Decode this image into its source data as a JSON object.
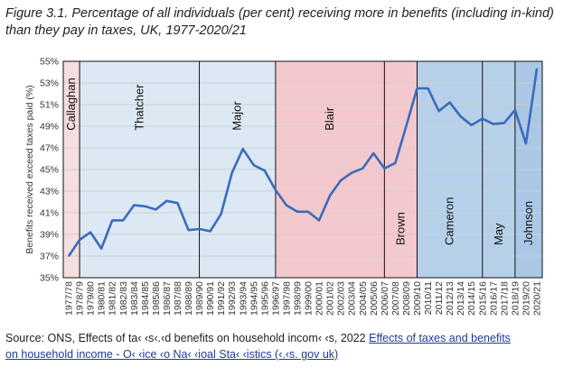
{
  "figure": {
    "title": "Figure 3.1. Percentage of all individuals (per cent) receiving more in benefits (including in-kind) than they pay in taxes, UK, 1977-2020/21"
  },
  "source": {
    "prefix": "Source: ONS, Effects of ta",
    "garbled_1": "‹ ‹s",
    "text_a": "‹.‹d",
    "text_b": " benefits on household incom",
    "garbled_2": "‹ ‹",
    "text_c": "s, 2022 ",
    "link_line1": "Effects of taxes and benefits",
    "link_line2_a": "on household income - O",
    "garbled_3": "‹ ‹ice",
    "link_line2_b": " ‹o",
    "link_line2_c": " Na",
    "garbled_4": "‹ ‹io",
    "link_line2_d": "al Sta",
    "garbled_5": "‹ ‹istics (‹",
    "link_line2_e": ".‹s. gov uk)"
  },
  "chart_data": {
    "type": "line",
    "title": "",
    "xlabel": "",
    "ylabel": "Benefits received exceed taxes paid (%)",
    "ylim": [
      35,
      55
    ],
    "yticks": [
      "35%",
      "37%",
      "39%",
      "41%",
      "43%",
      "45%",
      "47%",
      "49%",
      "51%",
      "53%",
      "55%"
    ],
    "grid": true,
    "line_color": "#3a6bbd",
    "categories": [
      "1977/78",
      "1978/79",
      "1979/80",
      "1980/81",
      "1981/82",
      "1982/83",
      "1983/84",
      "1984/85",
      "1985/86",
      "1986/87",
      "1987/88",
      "1988/89",
      "1989/90",
      "1990/91",
      "1991/92",
      "1992/93",
      "1993/94",
      "1994/95",
      "1995/96",
      "1996/97",
      "1997/98",
      "1998/99",
      "1999/00",
      "2000/01",
      "2001/02",
      "2002/03",
      "2003/04",
      "2004/05",
      "2005/06",
      "2006/07",
      "2007/08",
      "2008/09",
      "2009/10",
      "2010/11",
      "2011/12",
      "2012/13",
      "2013/14",
      "2014/15",
      "2015/16",
      "2016/17",
      "2017/18",
      "2018/19",
      "2019/20",
      "2020/21"
    ],
    "values": [
      37.0,
      38.5,
      39.2,
      37.7,
      40.3,
      40.3,
      41.7,
      41.6,
      41.3,
      42.1,
      41.9,
      39.4,
      39.5,
      39.3,
      40.9,
      44.7,
      46.9,
      45.4,
      44.9,
      43.1,
      41.7,
      41.1,
      41.1,
      40.3,
      42.6,
      44.0,
      44.7,
      45.1,
      46.5,
      45.1,
      45.6,
      49.0,
      52.5,
      52.5,
      50.4,
      51.2,
      49.9,
      49.1,
      49.7,
      49.2,
      49.3,
      50.5,
      47.4,
      54.3
    ],
    "periods": [
      {
        "name": "Callaghan",
        "start": 0,
        "end": 1.5,
        "color": "#f5dede",
        "orient": "vertical"
      },
      {
        "name": "Thatcher",
        "start": 1.5,
        "end": 12.5,
        "color": "#dce9f5",
        "orient": "vertical"
      },
      {
        "name": "Major",
        "start": 12.5,
        "end": 19.5,
        "color": "#dce9f5",
        "orient": "vertical"
      },
      {
        "name": "Blair",
        "start": 19.5,
        "end": 29.5,
        "color": "#f4c9cd",
        "orient": "vertical"
      },
      {
        "name": "Brown",
        "start": 29.5,
        "end": 32.5,
        "color": "#f4c9cd",
        "orient": "vertical"
      },
      {
        "name": "Cameron",
        "start": 32.5,
        "end": 38.5,
        "color": "#b6d0ea",
        "orient": "vertical"
      },
      {
        "name": "May",
        "start": 38.5,
        "end": 41.5,
        "color": "#b6d0ea",
        "orient": "vertical"
      },
      {
        "name": "Johnson",
        "start": 41.5,
        "end": 44,
        "color": "#aac7e6",
        "orient": "vertical"
      }
    ]
  }
}
